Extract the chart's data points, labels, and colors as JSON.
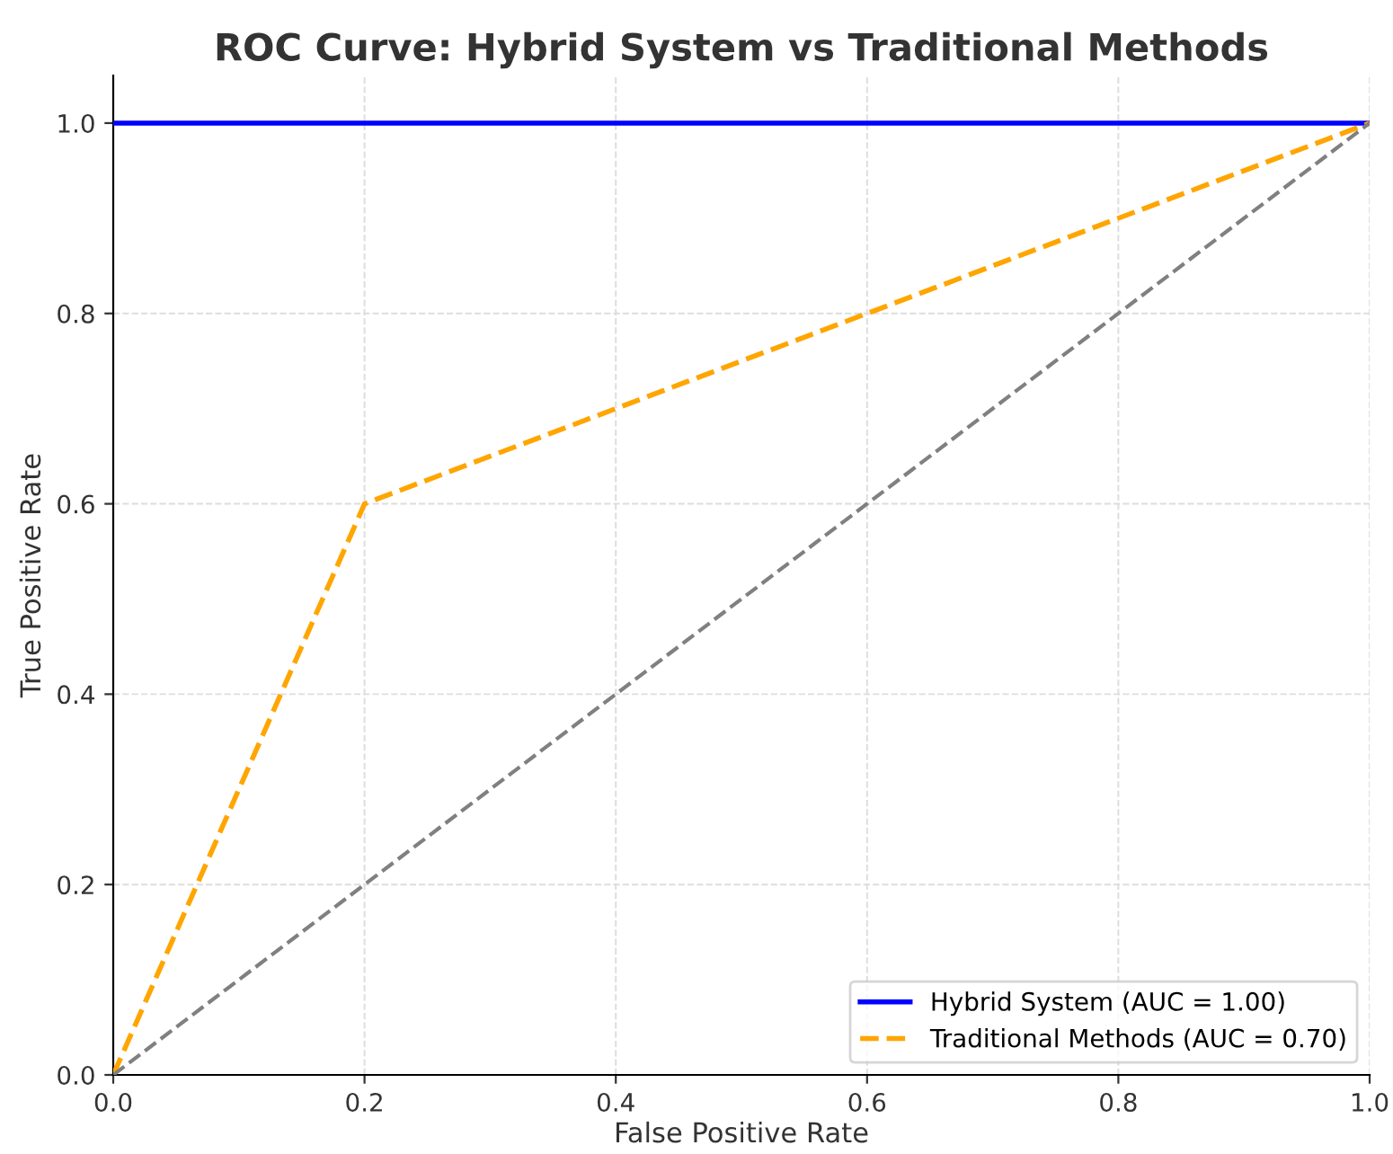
{
  "chart_data": {
    "type": "line",
    "title": "ROC Curve: Hybrid System vs Traditional Methods",
    "xlabel": "False Positive Rate",
    "ylabel": "True Positive Rate",
    "series": [
      {
        "name": "Hybrid System (AUC = 1.00)",
        "color": "#0000ff",
        "x": [
          0,
          1
        ],
        "values": [
          1,
          1
        ],
        "line_style": "solid"
      },
      {
        "name": "Traditional Methods (AUC = 0.70)",
        "color": "#ffa500",
        "x": [
          0,
          0.2,
          1
        ],
        "values": [
          0,
          0.6,
          1
        ],
        "line_style": "dashed"
      },
      {
        "color": "#808080",
        "x": [
          0,
          1
        ],
        "values": [
          0,
          1
        ],
        "line_style": "dashed"
      }
    ],
    "xlim": [
      0,
      1
    ],
    "ylim": [
      0,
      1.05
    ],
    "xticks": [
      {
        "value": 0,
        "label": "0.0"
      },
      0.2,
      0.4,
      0.6,
      0.8,
      {
        "value": 1,
        "label": "1.0"
      }
    ],
    "yticks": [
      {
        "value": 0,
        "label": "0.0"
      },
      0.2,
      0.4,
      0.6,
      0.8,
      {
        "value": 1,
        "label": "1.0"
      }
    ],
    "grid": true,
    "legend": "bottom right"
  }
}
